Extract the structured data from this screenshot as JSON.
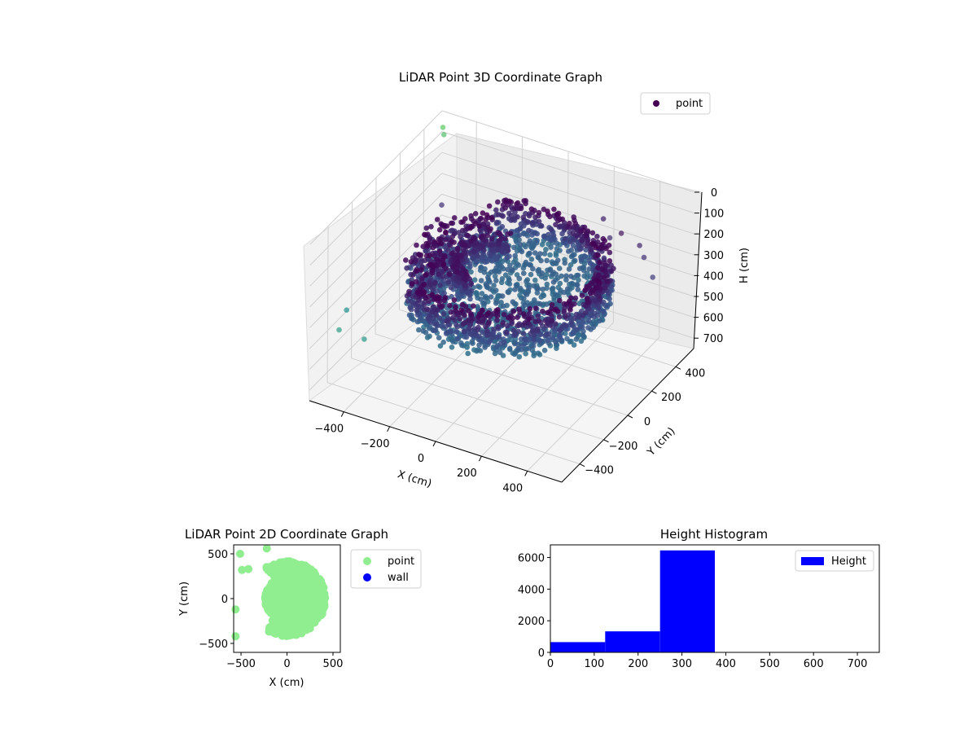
{
  "colors": {
    "viridis_dark": "#440154",
    "viridis_blue": "#3b528b",
    "viridis_teal": "#21918c",
    "viridis_green": "#5ec962",
    "viridis_yellow": "#fde725",
    "point_2d": "#90ee90",
    "wall": "#0000ff",
    "hist_bar": "#0000ff"
  },
  "chart_data": [
    {
      "type": "scatter3d",
      "title": "LiDAR Point 3D Coordinate Graph",
      "xlabel": "X (cm)",
      "ylabel": "Y (cm)",
      "zlabel": "H (cm)",
      "xlim": [
        -550,
        550
      ],
      "ylim": [
        -550,
        550
      ],
      "zlim": [
        0,
        750
      ],
      "z_inverted": true,
      "xticks": [
        -400,
        -200,
        0,
        200,
        400
      ],
      "yticks": [
        -400,
        -200,
        0,
        200,
        400
      ],
      "zticks": [
        0,
        100,
        200,
        300,
        400,
        500,
        600,
        700
      ],
      "legend": {
        "entries": [
          "point"
        ],
        "position": "top-right"
      },
      "grid": true,
      "description": "ring-shaped cloud of points at heights roughly 180-380 cm, with sparse outliers",
      "ring": {
        "center_x": 0,
        "center_y": 0,
        "radius": 430,
        "h_min": 180,
        "h_max": 380
      },
      "outliers": [
        {
          "x": -520,
          "y": 500,
          "h": 40
        },
        {
          "x": -500,
          "y": 470,
          "h": 50
        },
        {
          "x": -420,
          "y": 300,
          "h": 260
        },
        {
          "x": -350,
          "y": -100,
          "h": 300
        },
        {
          "x": -520,
          "y": -300,
          "h": 450
        },
        {
          "x": -500,
          "y": -400,
          "h": 480
        },
        {
          "x": -380,
          "y": -420,
          "h": 470
        },
        {
          "x": -200,
          "y": 250,
          "h": 320
        },
        {
          "x": 180,
          "y": 500,
          "h": 230
        },
        {
          "x": 250,
          "y": 420,
          "h": 250
        },
        {
          "x": 300,
          "y": 420,
          "h": 210
        },
        {
          "x": 380,
          "y": 420,
          "h": 240
        },
        {
          "x": 420,
          "y": 380,
          "h": 260
        },
        {
          "x": 100,
          "y": 420,
          "h": 290
        },
        {
          "x": 500,
          "y": 300,
          "h": 280
        }
      ]
    },
    {
      "type": "scatter",
      "title": "LiDAR Point 2D Coordinate Graph",
      "xlabel": "X (cm)",
      "ylabel": "Y (cm)",
      "xlim": [
        -580,
        580
      ],
      "ylim": [
        -600,
        600
      ],
      "xticks": [
        -500,
        0,
        500
      ],
      "yticks": [
        -500,
        0,
        500
      ],
      "legend": {
        "entries": [
          "point",
          "wall"
        ],
        "position": "outside-right"
      },
      "points_region": {
        "center_x": 0,
        "center_y": 0,
        "radius": 420,
        "notch": "left"
      },
      "sparse_points": [
        {
          "x": -510,
          "y": 500
        },
        {
          "x": -490,
          "y": 320
        },
        {
          "x": -420,
          "y": 330
        },
        {
          "x": -560,
          "y": -120
        },
        {
          "x": -560,
          "y": -420
        },
        {
          "x": -220,
          "y": 560
        }
      ],
      "wall_points": []
    },
    {
      "type": "bar",
      "title": "Height Histogram",
      "xlim": [
        0,
        750
      ],
      "ylim": [
        0,
        6800
      ],
      "xticks": [
        0,
        100,
        200,
        300,
        400,
        500,
        600,
        700
      ],
      "yticks": [
        0,
        2000,
        4000,
        6000
      ],
      "legend": {
        "entries": [
          "Height"
        ],
        "position": "top-right"
      },
      "bins": [
        {
          "from": 0,
          "to": 125,
          "count": 650
        },
        {
          "from": 125,
          "to": 250,
          "count": 1330
        },
        {
          "from": 250,
          "to": 375,
          "count": 6450
        }
      ]
    }
  ]
}
